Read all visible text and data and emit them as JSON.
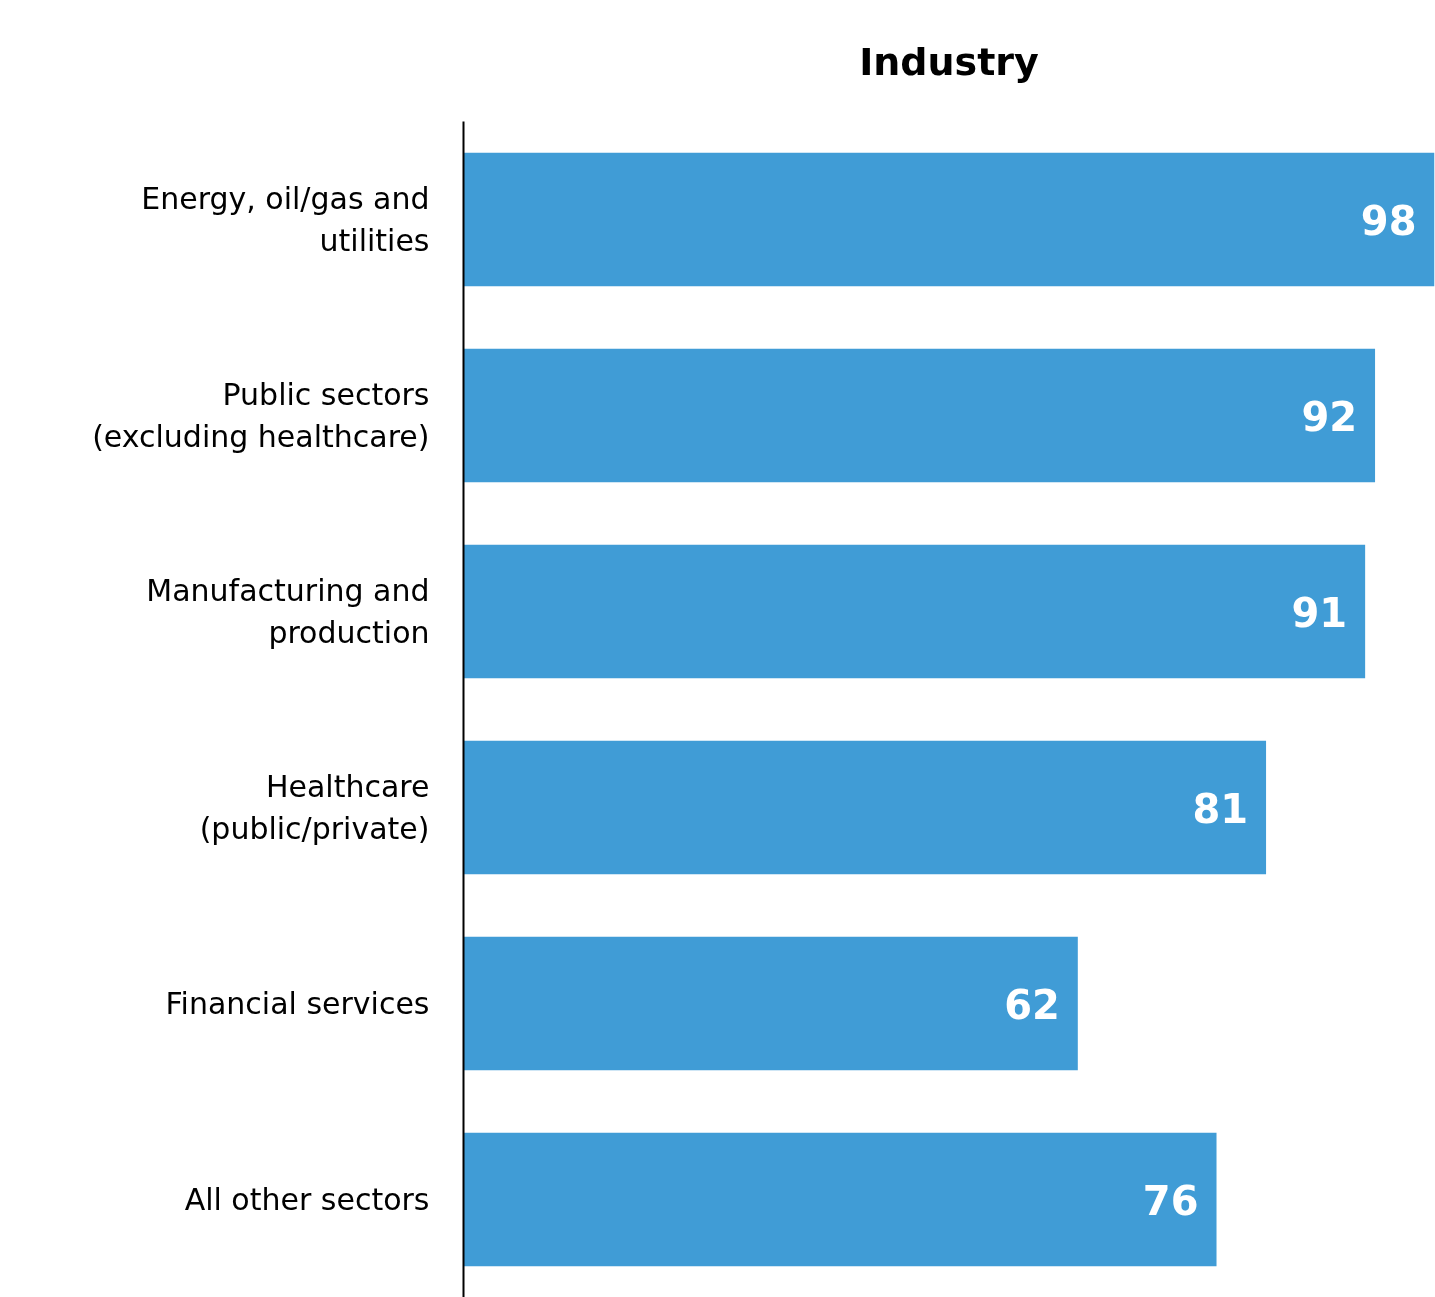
{
  "chart_data": {
    "type": "bar",
    "orientation": "horizontal",
    "title": "Industry",
    "categories": [
      "Energy, oil/gas and utilities",
      "Public sectors (excluding healthcare)",
      "Manufacturing and production",
      "Healthcare (public/private)",
      "Financial services",
      "All other sectors"
    ],
    "values": [
      98,
      92,
      91,
      81,
      62,
      76
    ],
    "color": "#409cd6",
    "data_labels": true,
    "grid": false
  }
}
